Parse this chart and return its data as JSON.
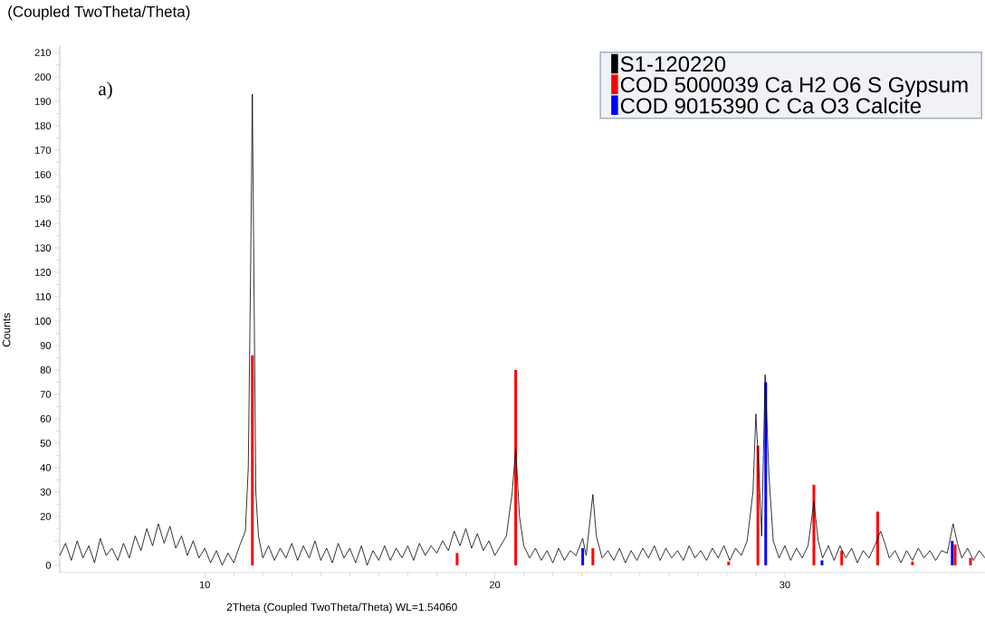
{
  "chart_data": {
    "type": "line",
    "title": "(Coupled TwoTheta/Theta)",
    "xlabel": "2Theta (Coupled TwoTheta/Theta) WL=1.54060",
    "ylabel": "Counts",
    "annotations": [
      "a)"
    ],
    "xlim": [
      5,
      36.9
    ],
    "ylim": [
      -3,
      213
    ],
    "xticks": [
      10,
      20,
      30
    ],
    "yticks": [
      0,
      {
        "value": 10,
        "label": null
      },
      20,
      30,
      40,
      50,
      60,
      70,
      80,
      90,
      100,
      110,
      120,
      130,
      140,
      150,
      160,
      170,
      180,
      190,
      200,
      210
    ],
    "legend": "top right",
    "series": [
      {
        "name": "S1-120220",
        "color": "#000000",
        "x": [
          5.0,
          5.2,
          5.4,
          5.6,
          5.8,
          6.0,
          6.2,
          6.4,
          6.6,
          6.8,
          7.0,
          7.2,
          7.4,
          7.6,
          7.8,
          8.0,
          8.2,
          8.4,
          8.6,
          8.8,
          9.0,
          9.2,
          9.4,
          9.6,
          9.8,
          10.0,
          10.2,
          10.4,
          10.6,
          10.8,
          11.0,
          11.2,
          11.4,
          11.5,
          11.58,
          11.64,
          11.7,
          11.76,
          11.85,
          12.0,
          12.2,
          12.4,
          12.6,
          12.8,
          13.0,
          13.2,
          13.4,
          13.6,
          13.8,
          14.0,
          14.2,
          14.4,
          14.6,
          14.8,
          15.0,
          15.2,
          15.4,
          15.6,
          15.8,
          16.0,
          16.2,
          16.4,
          16.6,
          16.8,
          17.0,
          17.2,
          17.4,
          17.6,
          17.8,
          18.0,
          18.2,
          18.4,
          18.6,
          18.8,
          19.0,
          19.2,
          19.4,
          19.6,
          19.8,
          20.0,
          20.2,
          20.4,
          20.6,
          20.72,
          20.85,
          21.0,
          21.2,
          21.4,
          21.6,
          21.8,
          22.0,
          22.2,
          22.4,
          22.6,
          22.8,
          23.03,
          23.15,
          23.38,
          23.5,
          23.7,
          23.9,
          24.1,
          24.3,
          24.5,
          24.7,
          24.9,
          25.1,
          25.3,
          25.5,
          25.7,
          25.9,
          26.1,
          26.3,
          26.5,
          26.7,
          26.9,
          27.1,
          27.3,
          27.5,
          27.7,
          27.9,
          28.1,
          28.3,
          28.5,
          28.7,
          28.9,
          29.0,
          29.1,
          29.2,
          29.32,
          29.45,
          29.6,
          29.8,
          30.0,
          30.2,
          30.4,
          30.6,
          30.8,
          31.0,
          31.15,
          31.3,
          31.5,
          31.7,
          31.9,
          32.1,
          32.3,
          32.5,
          32.7,
          32.9,
          33.1,
          33.3,
          33.45,
          33.6,
          33.8,
          34.0,
          34.2,
          34.4,
          34.6,
          34.8,
          35.0,
          35.2,
          35.4,
          35.6,
          35.8,
          35.95,
          36.1,
          36.3,
          36.5,
          36.7,
          36.9
        ],
        "values": [
          4,
          9,
          2,
          10,
          3,
          8,
          1,
          11,
          4,
          7,
          2,
          9,
          3,
          12,
          6,
          15,
          8,
          17,
          9,
          16,
          7,
          12,
          4,
          10,
          3,
          7,
          1,
          6,
          0,
          5,
          1,
          8,
          14,
          40,
          120,
          193,
          110,
          30,
          12,
          3,
          8,
          2,
          7,
          3,
          9,
          2,
          8,
          3,
          10,
          2,
          7,
          1,
          9,
          3,
          7,
          1,
          8,
          0,
          6,
          2,
          8,
          2,
          7,
          3,
          8,
          2,
          9,
          4,
          8,
          5,
          10,
          6,
          14,
          8,
          15,
          7,
          13,
          6,
          10,
          4,
          8,
          12,
          30,
          48,
          20,
          8,
          3,
          7,
          2,
          6,
          1,
          7,
          2,
          6,
          4,
          11,
          4,
          29,
          12,
          3,
          6,
          2,
          7,
          1,
          6,
          2,
          7,
          3,
          8,
          2,
          7,
          3,
          6,
          2,
          8,
          3,
          6,
          2,
          7,
          3,
          8,
          2,
          7,
          4,
          10,
          30,
          62,
          40,
          12,
          78,
          37,
          10,
          3,
          8,
          2,
          7,
          3,
          8,
          26,
          10,
          3,
          8,
          2,
          8,
          3,
          7,
          1,
          6,
          3,
          8,
          14,
          9,
          3,
          6,
          1,
          6,
          2,
          7,
          3,
          6,
          2,
          6,
          5,
          17,
          9,
          3,
          7,
          2,
          6,
          3
        ]
      },
      {
        "name": "COD 5000039 Ca H2 O6 S Gypsum",
        "type": "bar",
        "color": "#ff0000",
        "x": [
          11.64,
          18.7,
          20.72,
          23.38,
          28.06,
          29.07,
          31.0,
          31.96,
          33.2,
          34.4,
          35.87,
          36.4
        ],
        "values": [
          86,
          5,
          80,
          7,
          1.5,
          49,
          33,
          6,
          22,
          1.5,
          8.5,
          3
        ]
      },
      {
        "name": "COD 9015390 C Ca O3 Calcite",
        "type": "bar",
        "color": "#0000ff",
        "x": [
          23.03,
          29.34,
          31.28,
          35.77
        ],
        "values": [
          7,
          75,
          2,
          10
        ]
      }
    ]
  }
}
